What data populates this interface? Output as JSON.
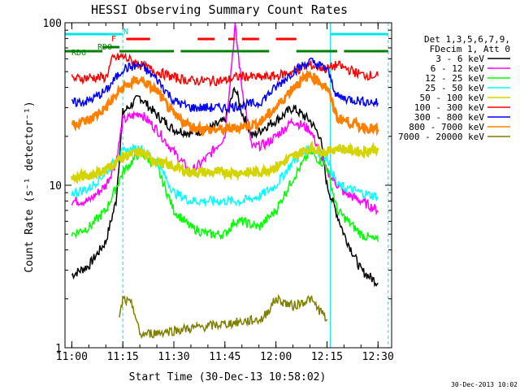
{
  "chart_data": {
    "type": "line",
    "title": "HESSI Observing Summary Count Rates",
    "xlabel": "Start Time (30-Dec-13 10:58:02)",
    "ylabel": "Count Rate (s⁻¹ detector⁻¹)",
    "y_scale": "log",
    "ylim": [
      1,
      100
    ],
    "xlim": [
      "10:58",
      "12:34"
    ],
    "x_ticks": [
      "11:00",
      "11:15",
      "11:30",
      "11:45",
      "12:00",
      "12:15",
      "12:30"
    ],
    "y_ticks": [
      "1",
      "10",
      "100"
    ],
    "grid": false,
    "legend_position": "right",
    "legend_header": [
      "Det 1,3,5,6,7,9,",
      "FDecim 1, Att 0"
    ],
    "series": [
      {
        "name": "3 - 6 keV",
        "color": "#000000",
        "points": [
          [
            "11:00",
            2.8
          ],
          [
            "11:05",
            3.2
          ],
          [
            "11:10",
            4.5
          ],
          [
            "11:13",
            8
          ],
          [
            "11:15",
            28
          ],
          [
            "11:20",
            35
          ],
          [
            "11:25",
            27
          ],
          [
            "11:30",
            22
          ],
          [
            "11:35",
            21
          ],
          [
            "11:40",
            22
          ],
          [
            "11:45",
            25
          ],
          [
            "11:48",
            40
          ],
          [
            "11:50",
            28
          ],
          [
            "11:53",
            20
          ],
          [
            "11:57",
            23
          ],
          [
            "12:00",
            25
          ],
          [
            "12:05",
            30
          ],
          [
            "12:10",
            25
          ],
          [
            "12:13",
            20
          ],
          [
            "12:15",
            10
          ],
          [
            "12:20",
            5
          ],
          [
            "12:25",
            3
          ],
          [
            "12:30",
            2.5
          ]
        ]
      },
      {
        "name": "6 - 12 keV",
        "color": "#ff00ff",
        "points": [
          [
            "11:00",
            8
          ],
          [
            "11:05",
            8
          ],
          [
            "11:10",
            10
          ],
          [
            "11:13",
            14
          ],
          [
            "11:15",
            25
          ],
          [
            "11:20",
            28
          ],
          [
            "11:25",
            22
          ],
          [
            "11:30",
            16
          ],
          [
            "11:35",
            12
          ],
          [
            "11:40",
            15
          ],
          [
            "11:45",
            20
          ],
          [
            "11:48",
            95
          ],
          [
            "11:50",
            40
          ],
          [
            "11:53",
            17
          ],
          [
            "11:57",
            18
          ],
          [
            "12:00",
            20
          ],
          [
            "12:05",
            25
          ],
          [
            "12:10",
            22
          ],
          [
            "12:13",
            16
          ],
          [
            "12:15",
            12
          ],
          [
            "12:20",
            9
          ],
          [
            "12:25",
            8
          ],
          [
            "12:30",
            7
          ]
        ]
      },
      {
        "name": "12 - 25 keV",
        "color": "#00ff00",
        "points": [
          [
            "11:00",
            5
          ],
          [
            "11:05",
            5.5
          ],
          [
            "11:10",
            7
          ],
          [
            "11:15",
            12
          ],
          [
            "11:20",
            16
          ],
          [
            "11:25",
            13
          ],
          [
            "11:30",
            7
          ],
          [
            "11:35",
            5.5
          ],
          [
            "11:40",
            5
          ],
          [
            "11:45",
            5
          ],
          [
            "11:48",
            6
          ],
          [
            "11:50",
            6
          ],
          [
            "11:55",
            5.5
          ],
          [
            "12:00",
            7
          ],
          [
            "12:05",
            11
          ],
          [
            "12:10",
            16
          ],
          [
            "12:15",
            13
          ],
          [
            "12:18",
            7
          ],
          [
            "12:25",
            5
          ],
          [
            "12:30",
            4.5
          ]
        ]
      },
      {
        "name": "25 - 50 keV",
        "color": "#00ffff",
        "points": [
          [
            "11:00",
            9
          ],
          [
            "11:05",
            9.5
          ],
          [
            "11:10",
            12
          ],
          [
            "11:15",
            16
          ],
          [
            "11:20",
            17
          ],
          [
            "11:25",
            14
          ],
          [
            "11:30",
            9
          ],
          [
            "11:35",
            8
          ],
          [
            "11:40",
            8
          ],
          [
            "11:45",
            8
          ],
          [
            "11:50",
            8
          ],
          [
            "11:55",
            8.5
          ],
          [
            "12:00",
            10
          ],
          [
            "12:05",
            14
          ],
          [
            "12:10",
            17
          ],
          [
            "12:15",
            15
          ],
          [
            "12:18",
            10
          ],
          [
            "12:25",
            9
          ],
          [
            "12:30",
            8.5
          ]
        ]
      },
      {
        "name": "50 - 100 keV",
        "color": "#d4d400",
        "points": [
          [
            "11:00",
            11
          ],
          [
            "11:05",
            11.5
          ],
          [
            "11:10",
            12.5
          ],
          [
            "11:15",
            15
          ],
          [
            "11:20",
            16
          ],
          [
            "11:25",
            14
          ],
          [
            "11:30",
            13
          ],
          [
            "11:35",
            12
          ],
          [
            "11:40",
            12
          ],
          [
            "11:45",
            12
          ],
          [
            "11:50",
            12
          ],
          [
            "11:55",
            12
          ],
          [
            "12:00",
            13
          ],
          [
            "12:05",
            15
          ],
          [
            "12:10",
            17
          ],
          [
            "12:15",
            16
          ],
          [
            "12:18",
            17
          ],
          [
            "12:25",
            16
          ],
          [
            "12:30",
            17
          ]
        ]
      },
      {
        "name": "100 - 300 keV",
        "color": "#ff0000",
        "points": [
          [
            "11:00",
            45
          ],
          [
            "11:05",
            46
          ],
          [
            "11:10",
            46
          ],
          [
            "11:12",
            60
          ],
          [
            "11:15",
            62
          ],
          [
            "11:20",
            55
          ],
          [
            "11:25",
            50
          ],
          [
            "11:30",
            46
          ],
          [
            "11:35",
            44
          ],
          [
            "11:40",
            44
          ],
          [
            "11:45",
            44
          ],
          [
            "11:48",
            46
          ],
          [
            "11:50",
            47
          ],
          [
            "11:55",
            46
          ],
          [
            "12:00",
            47
          ],
          [
            "12:05",
            50
          ],
          [
            "12:10",
            55
          ],
          [
            "12:15",
            52
          ],
          [
            "12:18",
            55
          ],
          [
            "12:25",
            48
          ],
          [
            "12:30",
            47
          ]
        ]
      },
      {
        "name": "300 - 800 keV",
        "color": "#0000ff",
        "points": [
          [
            "11:00",
            32
          ],
          [
            "11:05",
            33
          ],
          [
            "11:10",
            38
          ],
          [
            "11:15",
            52
          ],
          [
            "11:20",
            55
          ],
          [
            "11:25",
            45
          ],
          [
            "11:30",
            33
          ],
          [
            "11:35",
            30
          ],
          [
            "11:40",
            30
          ],
          [
            "11:45",
            30
          ],
          [
            "11:50",
            31
          ],
          [
            "11:55",
            32
          ],
          [
            "12:00",
            40
          ],
          [
            "12:05",
            50
          ],
          [
            "12:10",
            58
          ],
          [
            "12:15",
            52
          ],
          [
            "12:18",
            35
          ],
          [
            "12:25",
            33
          ],
          [
            "12:30",
            32
          ]
        ]
      },
      {
        "name": "800 - 7000 keV",
        "color": "#ff8000",
        "points": [
          [
            "11:00",
            24
          ],
          [
            "11:05",
            25
          ],
          [
            "11:10",
            30
          ],
          [
            "11:15",
            40
          ],
          [
            "11:20",
            45
          ],
          [
            "11:25",
            38
          ],
          [
            "11:30",
            27
          ],
          [
            "11:35",
            23
          ],
          [
            "11:40",
            22
          ],
          [
            "11:45",
            22
          ],
          [
            "11:50",
            23
          ],
          [
            "11:55",
            24
          ],
          [
            "12:00",
            30
          ],
          [
            "12:05",
            40
          ],
          [
            "12:10",
            48
          ],
          [
            "12:15",
            40
          ],
          [
            "12:18",
            26
          ],
          [
            "12:25",
            23
          ],
          [
            "12:30",
            22
          ]
        ]
      },
      {
        "name": "7000 - 20000 keV",
        "color": "#808000",
        "points": [
          [
            "11:14",
            1.5
          ],
          [
            "11:15",
            2
          ],
          [
            "11:18",
            1.8
          ],
          [
            "11:20",
            1.2
          ],
          [
            "11:56",
            1.5
          ],
          [
            "12:00",
            2
          ],
          [
            "12:05",
            1.8
          ],
          [
            "12:10",
            2
          ],
          [
            "12:15",
            1.5
          ]
        ]
      }
    ],
    "annotations": {
      "N_label": "N",
      "F_label": "F",
      "RDO_label": "RDO",
      "RD6_label": "RD6",
      "night_intervals": [
        [
          "10:58",
          "11:15"
        ],
        [
          "12:16",
          "12:33"
        ]
      ],
      "flare_intervals": [
        [
          "11:16",
          "11:23"
        ],
        [
          "11:37",
          "11:42"
        ],
        [
          "11:46",
          "11:48"
        ],
        [
          "11:50",
          "11:55"
        ],
        [
          "12:00",
          "12:06"
        ]
      ],
      "rdo_intervals": [
        [
          "11:09",
          "11:14"
        ]
      ],
      "rd6_intervals": [
        [
          "10:58",
          "11:09"
        ],
        [
          "11:14",
          "11:30"
        ],
        [
          "11:32",
          "11:58"
        ],
        [
          "12:06",
          "12:18"
        ],
        [
          "12:20",
          "12:33"
        ]
      ]
    },
    "timestamp": "30-Dec-2013 10:02"
  }
}
